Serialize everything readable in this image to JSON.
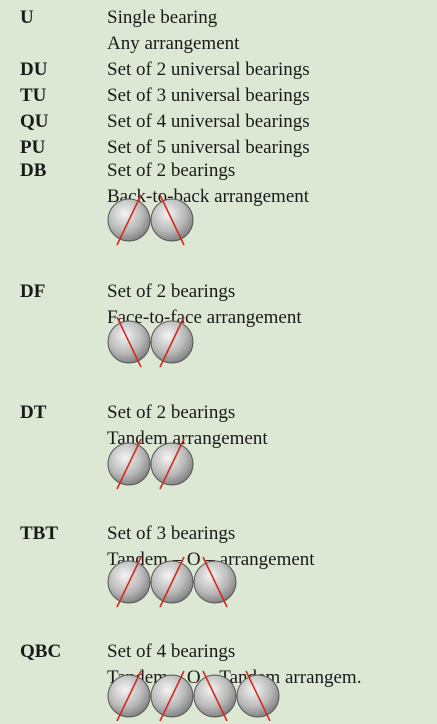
{
  "rows": [
    {
      "code": "U",
      "lines": [
        "Single bearing",
        "Any arrangement"
      ]
    },
    {
      "code": "DU",
      "lines": [
        "Set of 2 universal bearings"
      ]
    },
    {
      "code": "TU",
      "lines": [
        "Set of 3 universal bearings"
      ]
    },
    {
      "code": "QU",
      "lines": [
        "Set of 4 universal bearings"
      ]
    },
    {
      "code": "PU",
      "lines": [
        "Set of 5 universal bearings"
      ]
    },
    {
      "code": "DB",
      "lines": [
        "Set of 2 bearings",
        "Back-to-back arrangement"
      ]
    },
    {
      "code": "DF",
      "lines": [
        "Set of 2 bearings",
        "Face-to-face arrangement"
      ]
    },
    {
      "code": "DT",
      "lines": [
        "Set of 2 bearings",
        "Tandem arrangement"
      ]
    },
    {
      "code": "TBT",
      "lines": [
        "Set of 3 bearings",
        "Tandem – O – arrangement"
      ]
    },
    {
      "code": "QBC",
      "lines": [
        "Set of 4 bearings",
        "Tandem – O – Tandem arrangem."
      ]
    }
  ]
}
